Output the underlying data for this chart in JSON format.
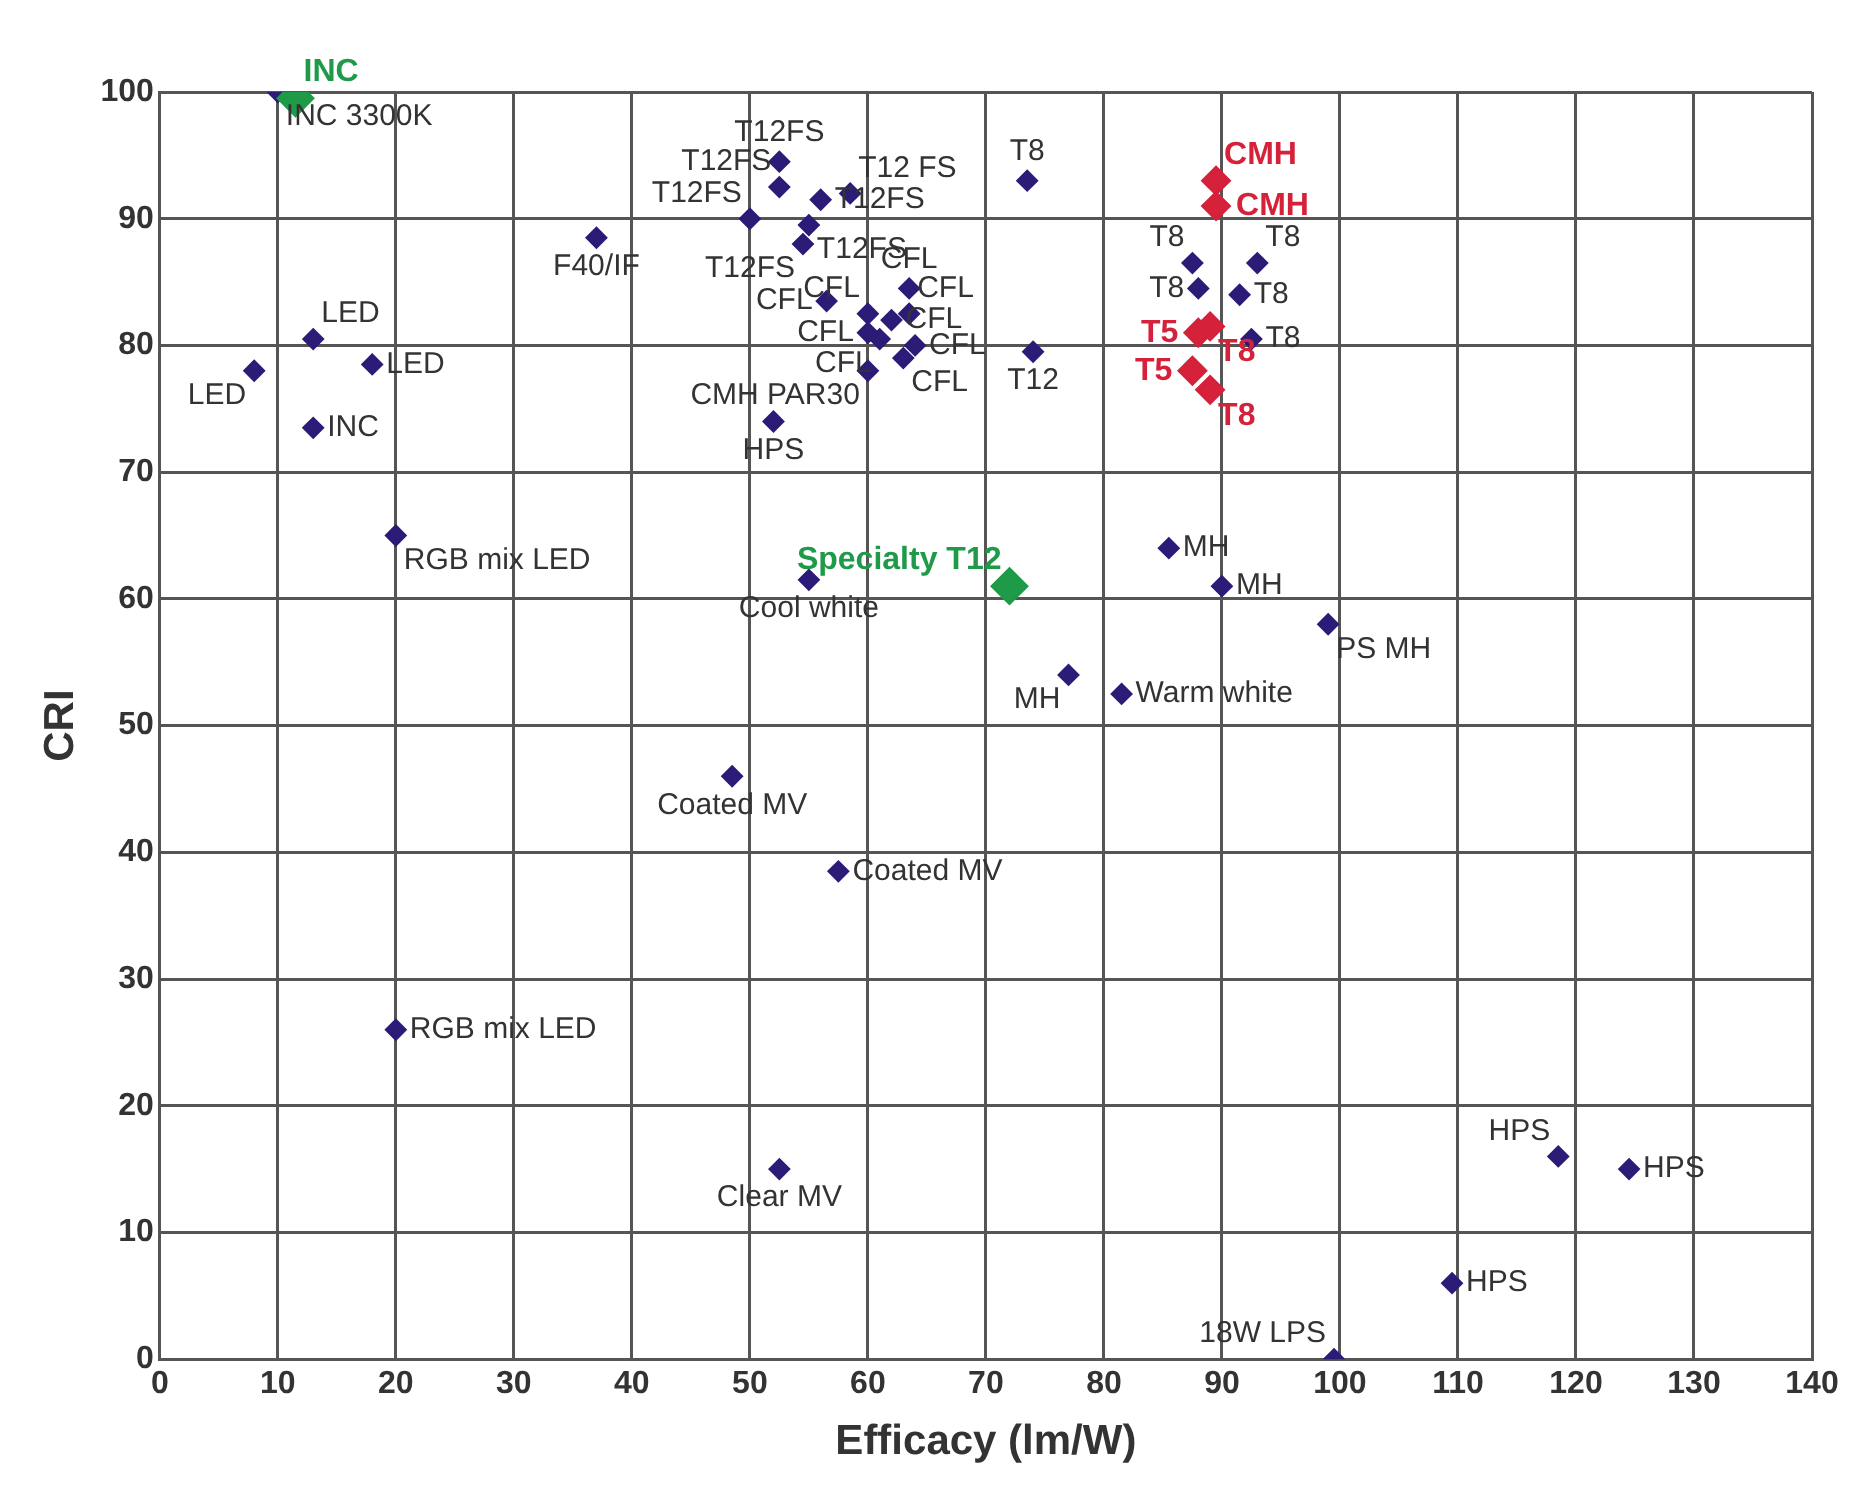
{
  "chart_data": {
    "type": "scatter",
    "xlabel": "Efficacy (lm/W)",
    "ylabel": "CRI",
    "xlim": [
      0,
      140
    ],
    "xticks": [
      0,
      10,
      20,
      30,
      40,
      50,
      60,
      70,
      80,
      90,
      100,
      110,
      120,
      130,
      140
    ],
    "ylim": [
      0,
      100
    ],
    "yticks": [
      0,
      10,
      20,
      30,
      40,
      50,
      60,
      70,
      80,
      90,
      100
    ],
    "grid": true,
    "marker": "diamond",
    "legend": false,
    "series": [
      {
        "color": "#2d1b78",
        "x": [
          10,
          37,
          13,
          18,
          8,
          13,
          20,
          20,
          52.5,
          52.5,
          50,
          58.5,
          56,
          55,
          54.5,
          73.5,
          56.5,
          60,
          63.5,
          63.5,
          62,
          60,
          64,
          63,
          61,
          60,
          52,
          74,
          87.5,
          88,
          93,
          91.5,
          92.5,
          55,
          85.5,
          90,
          99,
          77,
          81.5,
          48.5,
          57.5,
          52.5,
          118.5,
          124.5,
          109.5,
          99.5
        ],
        "values": [
          100,
          88.5,
          80.5,
          78.5,
          78,
          73.5,
          65,
          26,
          94.5,
          92.5,
          90,
          92,
          91.5,
          89.5,
          88,
          93,
          83.5,
          82.5,
          84.5,
          82.5,
          82,
          81,
          80,
          79,
          80.5,
          78,
          74,
          79.5,
          86.5,
          84.5,
          86.5,
          84,
          80.5,
          61.5,
          64,
          61,
          58,
          54,
          52.5,
          46,
          38.5,
          15,
          16,
          15,
          6,
          0
        ]
      },
      {
        "color": "#d6213b",
        "x": [
          89.5,
          89.5,
          88,
          89,
          87.5,
          89
        ],
        "values": [
          93,
          91,
          81,
          81.5,
          78,
          76.5
        ]
      },
      {
        "color": "#1e9a48",
        "x": [
          11.5,
          72
        ],
        "values": [
          99.5,
          61
        ]
      }
    ],
    "annotations": [
      {
        "text": "INC",
        "x": 11.5,
        "y": 99.5
      },
      {
        "text": "INC 3300K",
        "x": 10,
        "y": 100
      },
      {
        "text": "F40/IF",
        "x": 37,
        "y": 88.5
      },
      {
        "text": "LED",
        "x": 13,
        "y": 80.5
      },
      {
        "text": "LED",
        "x": 18,
        "y": 78.5
      },
      {
        "text": "LED",
        "x": 8,
        "y": 78
      },
      {
        "text": "INC",
        "x": 13,
        "y": 73.5
      },
      {
        "text": "RGB mix LED",
        "x": 20,
        "y": 65
      },
      {
        "text": "RGB mix LED",
        "x": 20,
        "y": 26
      },
      {
        "text": "T12FS",
        "x": 52.5,
        "y": 94.5
      },
      {
        "text": "T12FS",
        "x": 52.5,
        "y": 92.5
      },
      {
        "text": "T12FS",
        "x": 50,
        "y": 90
      },
      {
        "text": "T12 FS",
        "x": 58.5,
        "y": 92
      },
      {
        "text": "T12FS",
        "x": 56,
        "y": 91.5
      },
      {
        "text": "T12FS",
        "x": 55,
        "y": 89.5
      },
      {
        "text": "T12FS",
        "x": 54.5,
        "y": 88
      },
      {
        "text": "T8",
        "x": 73.5,
        "y": 93
      },
      {
        "text": "CFL",
        "x": 56.5,
        "y": 83.5
      },
      {
        "text": "CFL",
        "x": 60,
        "y": 82.5
      },
      {
        "text": "CFL",
        "x": 63.5,
        "y": 84.5
      },
      {
        "text": "CFL",
        "x": 63.5,
        "y": 82.5
      },
      {
        "text": "CFL",
        "x": 62,
        "y": 82
      },
      {
        "text": "CFL",
        "x": 60,
        "y": 81
      },
      {
        "text": "CFL",
        "x": 64,
        "y": 80
      },
      {
        "text": "CFL",
        "x": 63,
        "y": 79
      },
      {
        "text": "CFL",
        "x": 61,
        "y": 80.5
      },
      {
        "text": "CMH PAR30",
        "x": 60,
        "y": 78
      },
      {
        "text": "HPS",
        "x": 52,
        "y": 74
      },
      {
        "text": "T12",
        "x": 74,
        "y": 79.5
      },
      {
        "text": "T8",
        "x": 87.5,
        "y": 86.5
      },
      {
        "text": "T8",
        "x": 88,
        "y": 84.5
      },
      {
        "text": "T8",
        "x": 93,
        "y": 86.5
      },
      {
        "text": "T8",
        "x": 91.5,
        "y": 84
      },
      {
        "text": "T8",
        "x": 92.5,
        "y": 80.5
      },
      {
        "text": "Cool white",
        "x": 55,
        "y": 61.5
      },
      {
        "text": "MH",
        "x": 85.5,
        "y": 64
      },
      {
        "text": "MH",
        "x": 90,
        "y": 61
      },
      {
        "text": "PS MH",
        "x": 99,
        "y": 58
      },
      {
        "text": "MH",
        "x": 77,
        "y": 54
      },
      {
        "text": "Warm white",
        "x": 81.5,
        "y": 52.5
      },
      {
        "text": "Coated MV",
        "x": 48.5,
        "y": 46
      },
      {
        "text": "Coated MV",
        "x": 57.5,
        "y": 38.5
      },
      {
        "text": "Clear MV",
        "x": 52.5,
        "y": 15
      },
      {
        "text": "HPS",
        "x": 118.5,
        "y": 16
      },
      {
        "text": "HPS",
        "x": 124.5,
        "y": 15
      },
      {
        "text": "HPS",
        "x": 109.5,
        "y": 6
      },
      {
        "text": "18W LPS",
        "x": 99.5,
        "y": 0
      },
      {
        "text": "CMH",
        "x": 89.5,
        "y": 93
      },
      {
        "text": "CMH",
        "x": 89.5,
        "y": 91
      },
      {
        "text": "T5",
        "x": 88,
        "y": 81
      },
      {
        "text": "T8",
        "x": 89,
        "y": 81.5
      },
      {
        "text": "T5",
        "x": 87.5,
        "y": 78
      },
      {
        "text": "T8",
        "x": 89,
        "y": 76.5
      },
      {
        "text": "Specialty T12",
        "x": 72,
        "y": 61
      }
    ]
  }
}
